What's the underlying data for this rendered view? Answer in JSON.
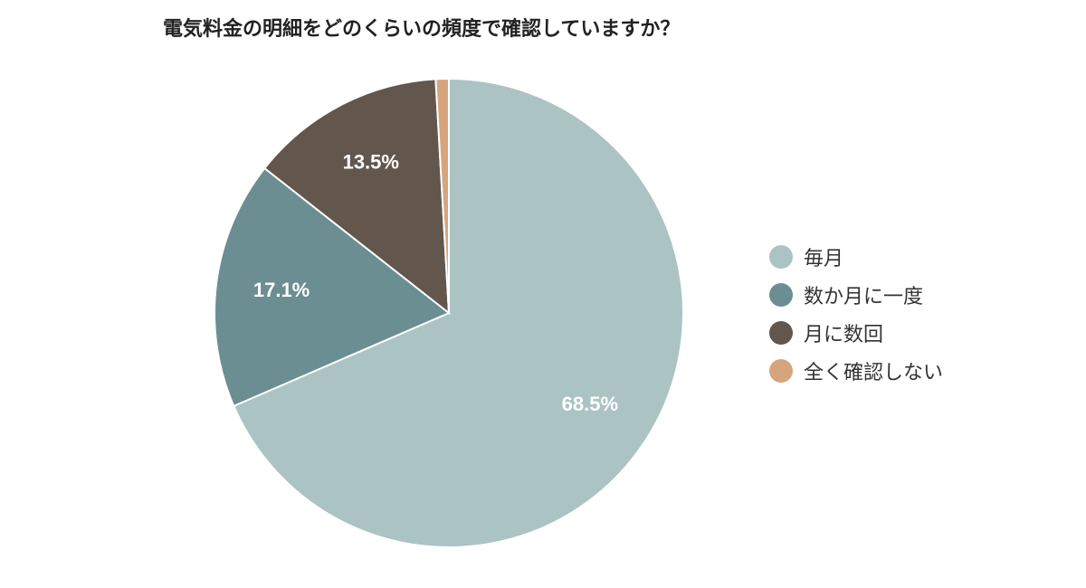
{
  "chart_data": {
    "type": "pie",
    "title": "電気料金の明細をどのくらいの頻度で確認していますか？",
    "categories": [
      "毎月",
      "数か月に一度",
      "月に数回",
      "全く確認しない"
    ],
    "values": [
      68.5,
      17.1,
      13.5,
      0.9
    ],
    "data_labels": [
      "68.5%",
      "17.1%",
      "13.5%",
      ""
    ],
    "colors": [
      "#abc3c3",
      "#6b8e92",
      "#62564d",
      "#d6a57d"
    ],
    "start": "12 o'clock",
    "direction": "clockwise",
    "legend_position": "right"
  }
}
